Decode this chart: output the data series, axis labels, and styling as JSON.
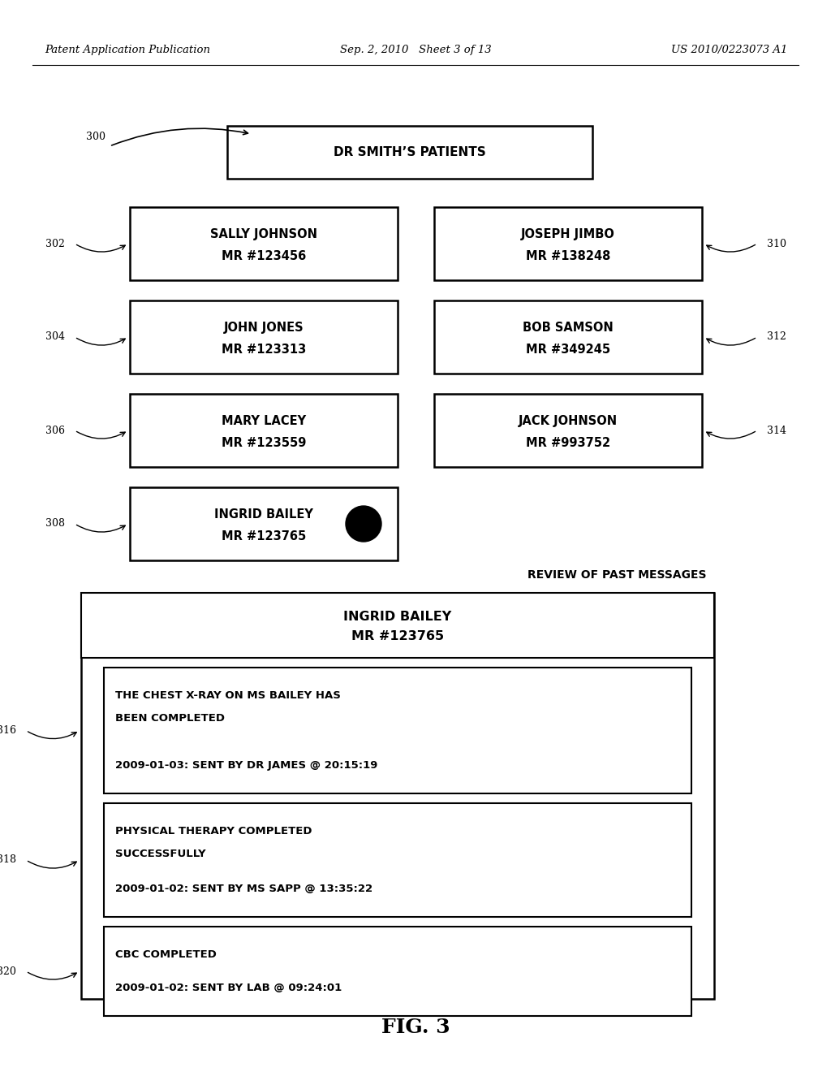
{
  "header_left": "Patent Application Publication",
  "header_mid": "Sep. 2, 2010   Sheet 3 of 13",
  "header_right": "US 2010/0223073 A1",
  "fig_label": "FIG. 3",
  "title_box": "DR SMITH’S PATIENTS",
  "patient_boxes": [
    {
      "label": "302",
      "side": "left",
      "line1": "SALLY JOHNSON",
      "line2": "MR #123456",
      "row": 0,
      "col": 0
    },
    {
      "label": "310",
      "side": "right",
      "line1": "JOSEPH JIMBO",
      "line2": "MR #138248",
      "row": 0,
      "col": 1
    },
    {
      "label": "304",
      "side": "left",
      "line1": "JOHN JONES",
      "line2": "MR #123313",
      "row": 1,
      "col": 0
    },
    {
      "label": "312",
      "side": "right",
      "line1": "BOB SAMSON",
      "line2": "MR #349245",
      "row": 1,
      "col": 1
    },
    {
      "label": "306",
      "side": "left",
      "line1": "MARY LACEY",
      "line2": "MR #123559",
      "row": 2,
      "col": 0
    },
    {
      "label": "314",
      "side": "right",
      "line1": "JACK JOHNSON",
      "line2": "MR #993752",
      "row": 2,
      "col": 1
    },
    {
      "label": "308",
      "side": "left",
      "line1": "INGRID BAILEY",
      "line2": "MR #123765",
      "row": 3,
      "col": 0,
      "dot": true
    }
  ],
  "review_title": "REVIEW OF PAST MESSAGES",
  "review_header_line1": "INGRID BAILEY",
  "review_header_line2": "MR #123765",
  "messages": [
    {
      "label": "316",
      "line1": "THE CHEST X-RAY ON MS BAILEY HAS",
      "line2": "BEEN COMPLETED",
      "line3": "2009-01-03: SENT BY DR JAMES @ 20:15:19"
    },
    {
      "label": "318",
      "line1": "PHYSICAL THERAPY COMPLETED",
      "line2": "SUCCESSFULLY",
      "line3": "2009-01-02: SENT BY MS SAPP @ 13:35:22"
    },
    {
      "label": "320",
      "line1": "CBC COMPLETED",
      "line2": "",
      "line3": "2009-01-02: SENT BY LAB @ 09:24:01"
    }
  ]
}
